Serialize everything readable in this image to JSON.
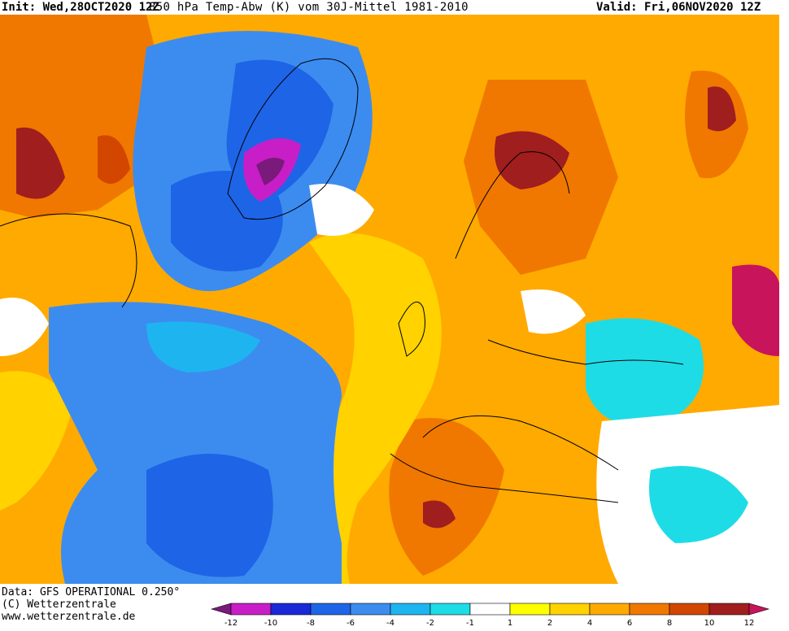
{
  "header": {
    "init": "Init: Wed,28OCT2020 12Z",
    "title": "850 hPa Temp-Abw (K) vom 30J-Mittel 1981-2010",
    "valid": "Valid: Fri,06NOV2020 12Z"
  },
  "footer": {
    "data_source": "Data: GFS OPERATIONAL 0.250°",
    "copyright": "(C) Wetterzentrale",
    "website": "www.wetterzentrale.de"
  },
  "legend": {
    "labels": [
      "-12",
      "-10",
      "-8",
      "-6",
      "-4",
      "-2",
      "-1",
      "1",
      "2",
      "4",
      "6",
      "8",
      "10",
      "12"
    ],
    "colors": [
      "#7a1a7a",
      "#c81ec8",
      "#1a28d8",
      "#1e64e6",
      "#3c8cf0",
      "#1eb4f0",
      "#1edce6",
      "#ffffff",
      "#ffff00",
      "#ffd200",
      "#ffaa00",
      "#f07800",
      "#d24600",
      "#a01e1e",
      "#c8145a"
    ]
  },
  "map": {
    "region": "North Atlantic / Europe",
    "palette": {
      "ocean_cold": "#3c8cf0",
      "ocean_colder": "#1e64e6",
      "greenland_core": "#c81ec8",
      "neutral": "#ffffff",
      "warm_light": "#ffd200",
      "warm": "#ffaa00",
      "warmer": "#f07800",
      "hot": "#a01e1e"
    }
  }
}
